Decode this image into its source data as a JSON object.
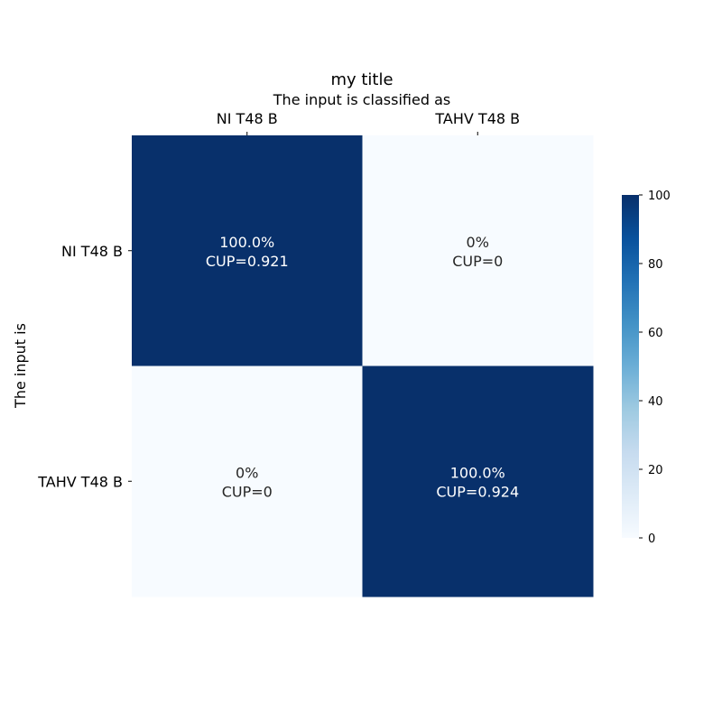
{
  "chart_data": {
    "type": "heatmap",
    "title": "my title",
    "xlabel": "The input is classified as",
    "ylabel": "The input is",
    "x_categories": [
      "NI T48 B",
      "TAHV T48 B"
    ],
    "y_categories": [
      "NI T48 B",
      "TAHV T48 B"
    ],
    "values": [
      [
        100,
        0
      ],
      [
        0,
        100
      ]
    ],
    "cell_labels": [
      [
        [
          "100.0%",
          "CUP=0.921"
        ],
        [
          "0%",
          "CUP=0"
        ]
      ],
      [
        [
          "0%",
          "CUP=0"
        ],
        [
          "100.0%",
          "CUP=0.924"
        ]
      ]
    ],
    "colorbar": {
      "min": 0,
      "max": 100,
      "ticks": [
        "0",
        "20",
        "40",
        "60",
        "80",
        "100"
      ],
      "colormap": "Blues"
    },
    "colors": {
      "low": "#f7fbff",
      "high": "#08306b"
    }
  }
}
